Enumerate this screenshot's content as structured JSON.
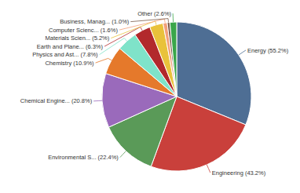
{
  "chart_data": {
    "type": "pie",
    "categories": [
      "Energy",
      "Engineering",
      "Environmental S...",
      "Chemical Engine...",
      "Chemistry",
      "Physics and Ast...",
      "Earth and Plane...",
      "Materials Scien...",
      "Computer Scienc...",
      "Business, Manag...",
      "Other"
    ],
    "values": [
      55.2,
      43.2,
      22.4,
      20.8,
      10.9,
      7.8,
      6.3,
      5.2,
      1.6,
      1.0,
      2.6
    ],
    "value_labels": [
      "(55.2%)",
      "(43.2%)",
      "(22.4%)",
      "(20.8%)",
      "(10.9%)",
      "(7.8%)",
      "(6.3%)",
      "(5.2%)",
      "(1.6%)",
      "(1.0%)",
      "(2.6%)"
    ],
    "colors": [
      "#4e6e94",
      "#c9403b",
      "#5a9a58",
      "#9a6abb",
      "#e5792b",
      "#7fe3c9",
      "#b2292c",
      "#e9c23b",
      "#f2a07a",
      "#7a5a48",
      "#3aa64a"
    ],
    "data_labels": true
  }
}
